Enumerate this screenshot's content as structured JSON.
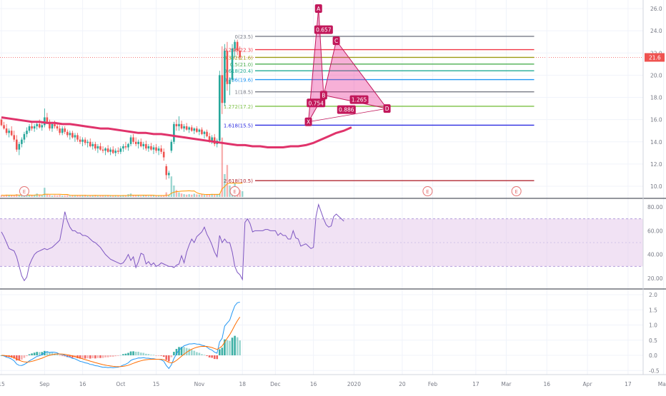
{
  "chart_data": {
    "type": "candlestick",
    "price_axis": {
      "ticks": [
        "26.0",
        "24.0",
        "22.0",
        "20.0",
        "18.0",
        "16.0",
        "14.0",
        "12.0",
        "10.0"
      ],
      "range": [
        9,
        26.5
      ],
      "last_price": "21.6"
    },
    "rsi_axis": {
      "ticks": [
        "80.00",
        "60.00",
        "40.00",
        "20.00"
      ],
      "range": [
        10,
        90
      ],
      "band": [
        30,
        70
      ]
    },
    "macd_axis": {
      "ticks": [
        "2.0",
        "1.5",
        "1.0",
        "0.5",
        "0.0",
        "-0.5"
      ],
      "range": [
        -0.8,
        2.2
      ]
    },
    "time_axis": [
      {
        "label": "15",
        "day": 0
      },
      {
        "label": "Sep",
        "day": 17
      },
      {
        "label": "16",
        "day": 32
      },
      {
        "label": "Oct",
        "day": 47
      },
      {
        "label": "15",
        "day": 61
      },
      {
        "label": "Nov",
        "day": 78
      },
      {
        "label": "18",
        "day": 95
      },
      {
        "label": "Dec",
        "day": 108
      },
      {
        "label": "16",
        "day": 123
      },
      {
        "label": "2020",
        "day": 139
      },
      {
        "label": "20",
        "day": 158
      },
      {
        "label": "Feb",
        "day": 170
      },
      {
        "label": "17",
        "day": 187
      },
      {
        "label": "Mar",
        "day": 199
      },
      {
        "label": "16",
        "day": 215
      },
      {
        "label": "Apr",
        "day": 231
      },
      {
        "label": "17",
        "day": 247
      },
      {
        "label": "May",
        "day": 261
      }
    ],
    "fib_levels": [
      {
        "label": "0(23.5)",
        "price": 23.5,
        "color": "#787b86"
      },
      {
        "label": "0.236(22.3)",
        "price": 22.3,
        "color": "#f23645"
      },
      {
        "label": "0.382(21.6)",
        "price": 21.6,
        "color": "#9c9b15"
      },
      {
        "label": "0.5(21.0)",
        "price": 21.0,
        "color": "#4caf50"
      },
      {
        "label": "0.618(20.4)",
        "price": 20.4,
        "color": "#22ab94"
      },
      {
        "label": "0.786(19.6)",
        "price": 19.6,
        "color": "#2196f3"
      },
      {
        "label": "1(18.5)",
        "price": 18.5,
        "color": "#787b86"
      },
      {
        "label": "1.272(17.2)",
        "price": 17.2,
        "color": "#7bc043"
      },
      {
        "label": "1.618(15.5)",
        "price": 15.5,
        "color": "#2a2ae0"
      },
      {
        "label": "2.618(10.5)",
        "price": 10.5,
        "color": "#b22833"
      }
    ],
    "harmonic_points": [
      {
        "label": "A",
        "day": 125,
        "price": 26.0
      },
      {
        "label": "B",
        "day": 127,
        "price": 18.2
      },
      {
        "label": "C",
        "day": 132,
        "price": 23.1
      },
      {
        "label": "D",
        "day": 152,
        "price": 17.0
      },
      {
        "label": "X",
        "day": 121,
        "price": 15.8
      }
    ],
    "harmonic_ratios": [
      {
        "label": "0.657",
        "day": 127,
        "price": 24.1
      },
      {
        "label": "0.754",
        "day": 124,
        "price": 17.5
      },
      {
        "label": "1.265",
        "day": 141,
        "price": 17.8
      },
      {
        "label": "0.886",
        "day": 136,
        "price": 16.9
      }
    ],
    "earnings_markers": [
      {
        "label": "E",
        "day": 9
      },
      {
        "label": "E",
        "day": 92
      },
      {
        "label": "E",
        "day": 168
      },
      {
        "label": "E",
        "day": 203
      }
    ],
    "ohlc": [
      [
        16.0,
        16.1,
        15.4,
        15.5
      ],
      [
        15.5,
        15.8,
        15.1,
        15.2
      ],
      [
        15.2,
        15.6,
        14.6,
        14.8
      ],
      [
        14.8,
        15.2,
        14.4,
        15.0
      ],
      [
        15.0,
        15.4,
        14.5,
        14.6
      ],
      [
        14.6,
        15.0,
        14.0,
        14.2
      ],
      [
        14.2,
        14.6,
        13.1,
        13.3
      ],
      [
        13.3,
        14.0,
        12.8,
        13.8
      ],
      [
        13.8,
        14.4,
        13.5,
        14.2
      ],
      [
        14.2,
        14.9,
        13.9,
        14.7
      ],
      [
        14.7,
        15.3,
        14.4,
        15.0
      ],
      [
        15.0,
        15.6,
        14.8,
        15.4
      ],
      [
        15.4,
        15.7,
        15.0,
        15.2
      ],
      [
        15.2,
        15.6,
        14.9,
        15.4
      ],
      [
        15.4,
        15.8,
        15.1,
        15.6
      ],
      [
        15.6,
        16.0,
        15.2,
        15.3
      ],
      [
        15.3,
        15.7,
        15.0,
        15.5
      ],
      [
        15.5,
        17.0,
        15.3,
        16.2
      ],
      [
        16.2,
        16.6,
        15.6,
        15.8
      ],
      [
        15.8,
        16.0,
        15.0,
        15.2
      ],
      [
        15.2,
        15.8,
        14.9,
        15.6
      ],
      [
        15.6,
        15.9,
        15.2,
        15.4
      ],
      [
        15.4,
        15.7,
        15.0,
        15.2
      ],
      [
        15.2,
        15.5,
        14.6,
        14.8
      ],
      [
        14.8,
        15.4,
        14.6,
        15.2
      ],
      [
        15.2,
        15.4,
        14.7,
        14.9
      ],
      [
        14.9,
        15.1,
        14.4,
        14.6
      ],
      [
        14.6,
        15.0,
        14.2,
        14.8
      ],
      [
        14.8,
        15.0,
        14.3,
        14.4
      ],
      [
        14.4,
        14.8,
        14.0,
        14.6
      ],
      [
        14.6,
        14.8,
        14.0,
        14.2
      ],
      [
        14.2,
        14.5,
        13.8,
        14.0
      ],
      [
        14.0,
        14.4,
        13.6,
        14.2
      ],
      [
        14.2,
        14.4,
        13.7,
        13.9
      ],
      [
        13.9,
        14.2,
        13.5,
        14.0
      ],
      [
        14.0,
        14.3,
        13.5,
        13.6
      ],
      [
        13.6,
        14.0,
        13.3,
        13.8
      ],
      [
        13.8,
        14.0,
        13.2,
        13.4
      ],
      [
        13.4,
        13.8,
        13.0,
        13.6
      ],
      [
        13.6,
        13.9,
        13.2,
        13.3
      ],
      [
        13.3,
        13.6,
        13.0,
        13.2
      ],
      [
        13.2,
        13.5,
        12.8,
        13.4
      ],
      [
        13.4,
        13.7,
        13.0,
        13.1
      ],
      [
        13.1,
        13.5,
        12.8,
        13.3
      ],
      [
        13.3,
        13.6,
        12.9,
        13.0
      ],
      [
        13.0,
        13.4,
        12.7,
        13.2
      ],
      [
        13.2,
        13.5,
        12.9,
        13.1
      ],
      [
        13.1,
        13.6,
        12.9,
        13.4
      ],
      [
        13.4,
        13.8,
        13.1,
        13.6
      ],
      [
        13.6,
        14.0,
        13.3,
        13.5
      ],
      [
        13.5,
        13.9,
        13.2,
        13.8
      ],
      [
        13.8,
        14.6,
        13.6,
        14.4
      ],
      [
        14.4,
        14.7,
        13.8,
        14.0
      ],
      [
        14.0,
        14.4,
        13.6,
        13.8
      ],
      [
        13.8,
        14.2,
        13.4,
        14.0
      ],
      [
        14.0,
        14.3,
        13.5,
        13.6
      ],
      [
        13.6,
        14.0,
        13.3,
        13.8
      ],
      [
        13.8,
        14.1,
        13.2,
        13.4
      ],
      [
        13.4,
        13.8,
        13.1,
        13.6
      ],
      [
        13.6,
        13.9,
        13.2,
        13.3
      ],
      [
        13.3,
        13.7,
        12.9,
        13.5
      ],
      [
        13.5,
        13.8,
        13.0,
        13.2
      ],
      [
        13.2,
        13.6,
        12.8,
        13.4
      ],
      [
        13.4,
        13.7,
        12.9,
        13.1
      ],
      [
        13.1,
        13.4,
        12.3,
        12.6
      ],
      [
        11.8,
        12.0,
        10.6,
        11.0
      ],
      [
        11.0,
        11.4,
        10.7,
        11.2
      ],
      [
        13.2,
        14.2,
        13.0,
        14.0
      ],
      [
        14.0,
        15.8,
        13.8,
        15.6
      ],
      [
        15.6,
        16.0,
        15.0,
        15.4
      ],
      [
        15.4,
        16.3,
        15.0,
        15.6
      ],
      [
        15.6,
        15.9,
        15.1,
        15.2
      ],
      [
        15.2,
        15.6,
        14.9,
        15.4
      ],
      [
        15.4,
        15.7,
        15.0,
        15.1
      ],
      [
        15.1,
        15.4,
        14.8,
        15.3
      ],
      [
        15.3,
        15.5,
        14.9,
        15.0
      ],
      [
        15.0,
        15.3,
        14.7,
        15.2
      ],
      [
        15.2,
        15.4,
        14.8,
        14.9
      ],
      [
        14.9,
        15.2,
        14.6,
        15.1
      ],
      [
        15.1,
        15.3,
        14.6,
        14.7
      ],
      [
        14.7,
        15.0,
        14.3,
        14.9
      ],
      [
        14.9,
        15.1,
        14.4,
        14.5
      ],
      [
        14.5,
        14.8,
        13.9,
        14.1
      ],
      [
        14.1,
        14.6,
        13.8,
        14.4
      ],
      [
        14.4,
        14.7,
        13.6,
        13.8
      ],
      [
        13.8,
        14.3,
        13.5,
        14.1
      ],
      [
        14.1,
        20.4,
        14.0,
        20.0
      ],
      [
        20.0,
        22.6,
        16.5,
        17.5
      ],
      [
        17.5,
        22.8,
        17.2,
        22.2
      ],
      [
        22.2,
        23.0,
        18.6,
        19.2
      ],
      [
        19.2,
        19.8,
        18.2,
        19.6
      ],
      [
        19.6,
        22.8,
        19.4,
        22.4
      ],
      [
        22.4,
        23.2,
        21.6,
        23.0
      ],
      [
        23.0,
        23.2,
        21.8,
        22.2
      ],
      [
        22.2,
        22.6,
        21.4,
        21.6
      ]
    ],
    "ma_line": [
      16.2,
      16.1,
      16.0,
      15.9,
      15.8,
      15.8,
      15.7,
      15.7,
      15.6,
      15.6,
      15.5,
      15.4,
      15.3,
      15.2,
      15.2,
      15.1,
      15.0,
      14.9,
      14.8,
      14.8,
      14.7,
      14.7,
      14.6,
      14.5,
      14.4,
      14.3,
      14.2,
      14.1,
      14.0,
      13.9,
      13.8,
      13.7,
      13.7,
      13.6,
      13.6,
      13.5,
      13.5,
      13.5,
      13.6,
      13.6,
      13.7,
      13.9,
      14.2,
      14.5,
      14.8,
      15.0,
      15.3
    ],
    "volume": [
      0.08,
      0.06,
      0.1,
      0.07,
      0.09,
      0.06,
      0.12,
      0.07,
      0.08,
      0.1,
      0.06,
      0.08,
      0.07,
      0.09,
      0.15,
      0.08,
      0.07,
      0.4,
      0.1,
      0.09,
      0.06,
      0.08,
      0.07,
      0.09,
      0.06,
      0.07,
      0.08,
      0.05,
      0.07,
      0.06,
      0.08,
      0.06,
      0.07,
      0.09,
      0.05,
      0.07,
      0.06,
      0.08,
      0.05,
      0.06,
      0.07,
      0.05,
      0.08,
      0.06,
      0.05,
      0.07,
      0.06,
      0.05,
      0.08,
      0.06,
      0.12,
      0.15,
      0.07,
      0.06,
      0.08,
      0.05,
      0.06,
      0.07,
      0.05,
      0.06,
      0.08,
      0.06,
      0.07,
      0.05,
      0.06,
      0.2,
      0.1,
      0.9,
      0.5,
      0.3,
      0.2,
      0.15,
      0.12,
      0.1,
      0.12,
      0.1,
      0.14,
      0.11,
      0.1,
      0.12,
      0.09,
      0.11,
      0.1,
      0.13,
      0.12,
      0.11,
      0.14,
      2.6,
      1.0,
      1.4,
      0.5,
      0.4,
      0.6,
      0.35,
      0.3,
      0.25
    ],
    "rsi": [
      59,
      55,
      50,
      45,
      44,
      43,
      38,
      30,
      22,
      18,
      21,
      31,
      36,
      40,
      42,
      43,
      44,
      45,
      44,
      45,
      46,
      48,
      50,
      52,
      63,
      76,
      68,
      63,
      60,
      60,
      58,
      58,
      56,
      56,
      55,
      53,
      51,
      50,
      48,
      46,
      43,
      40,
      38,
      36,
      35,
      34,
      33,
      32,
      33,
      36,
      40,
      35,
      38,
      29,
      34,
      41,
      40,
      32,
      34,
      31,
      33,
      30,
      31,
      33,
      32,
      31,
      30,
      30,
      29,
      31,
      32,
      39,
      33,
      42,
      48,
      53,
      50,
      55,
      57,
      59,
      63,
      57,
      53,
      48,
      42,
      38,
      56,
      50,
      53,
      50,
      50,
      42,
      30,
      25,
      23,
      19,
      67,
      70,
      66,
      59,
      60,
      60,
      60,
      60,
      61,
      61,
      60,
      60,
      60,
      56,
      58,
      56,
      56,
      53,
      53,
      60,
      54,
      53,
      47,
      48,
      49,
      47,
      45,
      46,
      72,
      82,
      76,
      70,
      65,
      63,
      64,
      72,
      74,
      72,
      70,
      68
    ]
  }
}
